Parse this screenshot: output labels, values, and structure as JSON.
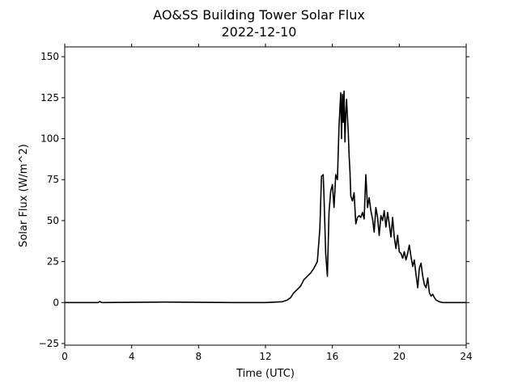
{
  "chart_data": {
    "type": "line",
    "title": "AO&SS Building Tower Solar Flux",
    "subtitle": "2022-12-10",
    "xlabel": "Time (UTC)",
    "ylabel": "Solar Flux (W/m^2)",
    "xlim": [
      0,
      24
    ],
    "ylim": [
      -26,
      156
    ],
    "xticks": [
      0,
      4,
      8,
      12,
      16,
      20,
      24
    ],
    "yticks": [
      -25,
      0,
      25,
      50,
      75,
      100,
      125,
      150
    ],
    "grid": false,
    "legend": "none",
    "line_color": "#000000",
    "series": [
      {
        "x": [
          0,
          2,
          2.1,
          2.2,
          6,
          10,
          12,
          13,
          13.3,
          13.5,
          13.7,
          13.9,
          14.1,
          14.3,
          14.5,
          14.7,
          14.9,
          15.1,
          15.25,
          15.35,
          15.45,
          15.5,
          15.6,
          15.7,
          15.8,
          15.9,
          16.0,
          16.1,
          16.2,
          16.3,
          16.4,
          16.5,
          16.55,
          16.6,
          16.65,
          16.7,
          16.75,
          16.8,
          16.85,
          16.9,
          16.95,
          17.0,
          17.05,
          17.1,
          17.2,
          17.3,
          17.4,
          17.5,
          17.6,
          17.7,
          17.8,
          17.9,
          18.0,
          18.1,
          18.2,
          18.3,
          18.4,
          18.5,
          18.6,
          18.7,
          18.8,
          18.9,
          19.0,
          19.1,
          19.2,
          19.3,
          19.4,
          19.5,
          19.6,
          19.7,
          19.8,
          19.9,
          20.0,
          20.1,
          20.2,
          20.3,
          20.4,
          20.5,
          20.6,
          20.7,
          20.8,
          20.9,
          21.0,
          21.1,
          21.2,
          21.3,
          21.4,
          21.5,
          21.6,
          21.7,
          21.8,
          21.9,
          22.0,
          22.1,
          22.2,
          22.4,
          22.6,
          23,
          24
        ],
        "y": [
          0,
          0,
          0.6,
          0,
          0.3,
          0,
          0,
          0.5,
          1.5,
          3,
          6,
          8,
          10,
          14,
          16,
          18,
          21,
          25,
          45,
          77,
          78,
          65,
          30,
          16,
          55,
          68,
          72,
          58,
          78,
          75,
          108,
          128,
          100,
          127,
          110,
          129,
          98,
          115,
          124,
          113,
          104,
          90,
          80,
          65,
          62,
          67,
          48,
          52,
          53,
          52,
          55,
          51,
          78,
          58,
          64,
          56,
          51,
          43,
          58,
          52,
          41,
          53,
          50,
          56,
          46,
          55,
          48,
          40,
          52,
          40,
          33,
          41,
          31,
          30,
          27,
          31,
          26,
          30,
          35,
          28,
          22,
          26,
          17,
          9,
          21,
          24,
          16,
          11,
          9,
          15,
          6,
          4,
          5,
          3,
          1.5,
          0.5,
          0,
          0,
          0
        ]
      }
    ]
  }
}
